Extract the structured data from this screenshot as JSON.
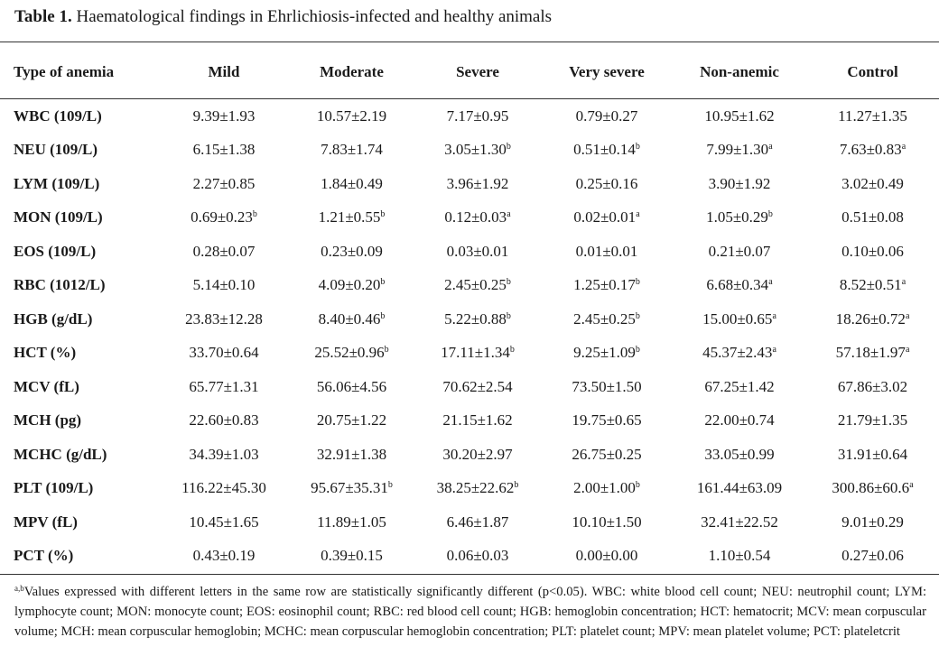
{
  "caption": {
    "label": "Table 1.",
    "text": "Haematological findings in Ehrlichiosis-infected and healthy animals"
  },
  "table": {
    "headers": [
      "Type of anemia",
      "Mild",
      "Moderate",
      "Severe",
      "Very severe",
      "Non-anemic",
      "Control"
    ],
    "rows": [
      {
        "label": "WBC (109/L)",
        "cells": [
          {
            "v": "9.39±1.93",
            "s": ""
          },
          {
            "v": "10.57±2.19",
            "s": ""
          },
          {
            "v": "7.17±0.95",
            "s": ""
          },
          {
            "v": "0.79±0.27",
            "s": ""
          },
          {
            "v": "10.95±1.62",
            "s": ""
          },
          {
            "v": "11.27±1.35",
            "s": ""
          }
        ]
      },
      {
        "label": "NEU (109/L)",
        "cells": [
          {
            "v": "6.15±1.38",
            "s": ""
          },
          {
            "v": "7.83±1.74",
            "s": ""
          },
          {
            "v": "3.05±1.30",
            "s": "b"
          },
          {
            "v": "0.51±0.14",
            "s": "b"
          },
          {
            "v": "7.99±1.30",
            "s": "a"
          },
          {
            "v": "7.63±0.83",
            "s": "a"
          }
        ]
      },
      {
        "label": "LYM (109/L)",
        "cells": [
          {
            "v": "2.27±0.85",
            "s": ""
          },
          {
            "v": "1.84±0.49",
            "s": ""
          },
          {
            "v": "3.96±1.92",
            "s": ""
          },
          {
            "v": "0.25±0.16",
            "s": ""
          },
          {
            "v": "3.90±1.92",
            "s": ""
          },
          {
            "v": "3.02±0.49",
            "s": ""
          }
        ]
      },
      {
        "label": "MON (109/L)",
        "cells": [
          {
            "v": "0.69±0.23",
            "s": "b"
          },
          {
            "v": "1.21±0.55",
            "s": "b"
          },
          {
            "v": "0.12±0.03",
            "s": "a"
          },
          {
            "v": "0.02±0.01",
            "s": "a"
          },
          {
            "v": "1.05±0.29",
            "s": "b"
          },
          {
            "v": "0.51±0.08",
            "s": ""
          }
        ]
      },
      {
        "label": "EOS (109/L)",
        "cells": [
          {
            "v": "0.28±0.07",
            "s": ""
          },
          {
            "v": "0.23±0.09",
            "s": ""
          },
          {
            "v": "0.03±0.01",
            "s": ""
          },
          {
            "v": "0.01±0.01",
            "s": ""
          },
          {
            "v": "0.21±0.07",
            "s": ""
          },
          {
            "v": "0.10±0.06",
            "s": ""
          }
        ]
      },
      {
        "label": "RBC (1012/L)",
        "cells": [
          {
            "v": "5.14±0.10",
            "s": ""
          },
          {
            "v": "4.09±0.20",
            "s": "b"
          },
          {
            "v": "2.45±0.25",
            "s": "b"
          },
          {
            "v": "1.25±0.17",
            "s": "b"
          },
          {
            "v": "6.68±0.34",
            "s": "a"
          },
          {
            "v": "8.52±0.51",
            "s": "a"
          }
        ]
      },
      {
        "label": "HGB (g/dL)",
        "cells": [
          {
            "v": "23.83±12.28",
            "s": ""
          },
          {
            "v": "8.40±0.46",
            "s": "b"
          },
          {
            "v": "5.22±0.88",
            "s": "b"
          },
          {
            "v": "2.45±0.25",
            "s": "b"
          },
          {
            "v": "15.00±0.65",
            "s": "a"
          },
          {
            "v": "18.26±0.72",
            "s": "a"
          }
        ]
      },
      {
        "label": "HCT (%)",
        "cells": [
          {
            "v": "33.70±0.64",
            "s": ""
          },
          {
            "v": "25.52±0.96",
            "s": "b"
          },
          {
            "v": "17.11±1.34",
            "s": "b"
          },
          {
            "v": "9.25±1.09",
            "s": "b"
          },
          {
            "v": "45.37±2.43",
            "s": "a"
          },
          {
            "v": "57.18±1.97",
            "s": "a"
          }
        ]
      },
      {
        "label": "MCV (fL)",
        "cells": [
          {
            "v": "65.77±1.31",
            "s": ""
          },
          {
            "v": "56.06±4.56",
            "s": ""
          },
          {
            "v": "70.62±2.54",
            "s": ""
          },
          {
            "v": "73.50±1.50",
            "s": ""
          },
          {
            "v": "67.25±1.42",
            "s": ""
          },
          {
            "v": "67.86±3.02",
            "s": ""
          }
        ]
      },
      {
        "label": "MCH (pg)",
        "cells": [
          {
            "v": "22.60±0.83",
            "s": ""
          },
          {
            "v": "20.75±1.22",
            "s": ""
          },
          {
            "v": "21.15±1.62",
            "s": ""
          },
          {
            "v": "19.75±0.65",
            "s": ""
          },
          {
            "v": "22.00±0.74",
            "s": ""
          },
          {
            "v": "21.79±1.35",
            "s": ""
          }
        ]
      },
      {
        "label": "MCHC (g/dL)",
        "cells": [
          {
            "v": "34.39±1.03",
            "s": ""
          },
          {
            "v": "32.91±1.38",
            "s": ""
          },
          {
            "v": "30.20±2.97",
            "s": ""
          },
          {
            "v": "26.75±0.25",
            "s": ""
          },
          {
            "v": "33.05±0.99",
            "s": ""
          },
          {
            "v": "31.91±0.64",
            "s": ""
          }
        ]
      },
      {
        "label": "PLT (109/L)",
        "cells": [
          {
            "v": "116.22±45.30",
            "s": ""
          },
          {
            "v": "95.67±35.31",
            "s": "b"
          },
          {
            "v": "38.25±22.62",
            "s": "b"
          },
          {
            "v": "2.00±1.00",
            "s": "b"
          },
          {
            "v": "161.44±63.09",
            "s": ""
          },
          {
            "v": "300.86±60.6",
            "s": "a"
          }
        ]
      },
      {
        "label": "MPV (fL)",
        "cells": [
          {
            "v": "10.45±1.65",
            "s": ""
          },
          {
            "v": "11.89±1.05",
            "s": ""
          },
          {
            "v": "6.46±1.87",
            "s": ""
          },
          {
            "v": "10.10±1.50",
            "s": ""
          },
          {
            "v": "32.41±22.52",
            "s": ""
          },
          {
            "v": "9.01±0.29",
            "s": ""
          }
        ]
      },
      {
        "label": "PCT (%)",
        "cells": [
          {
            "v": "0.43±0.19",
            "s": ""
          },
          {
            "v": "0.39±0.15",
            "s": ""
          },
          {
            "v": "0.06±0.03",
            "s": ""
          },
          {
            "v": "0.00±0.00",
            "s": ""
          },
          {
            "v": "1.10±0.54",
            "s": ""
          },
          {
            "v": "0.27±0.06",
            "s": ""
          }
        ]
      }
    ]
  },
  "footnote": {
    "marker": "a,b",
    "text": "Values expressed with different letters in the same row are statistically significantly different (p<0.05). WBC: white blood cell count; NEU: neutrophil count; LYM: lymphocyte count; MON: monocyte count; EOS: eosinophil count; RBC: red blood cell count; HGB: hemoglobin concentration; HCT: hematocrit; MCV: mean corpuscular volume; MCH: mean corpuscular hemoglobin; MCHC: mean corpuscular hemoglobin concentration; PLT: platelet count; MPV: mean platelet volume; PCT: plateletcrit"
  }
}
